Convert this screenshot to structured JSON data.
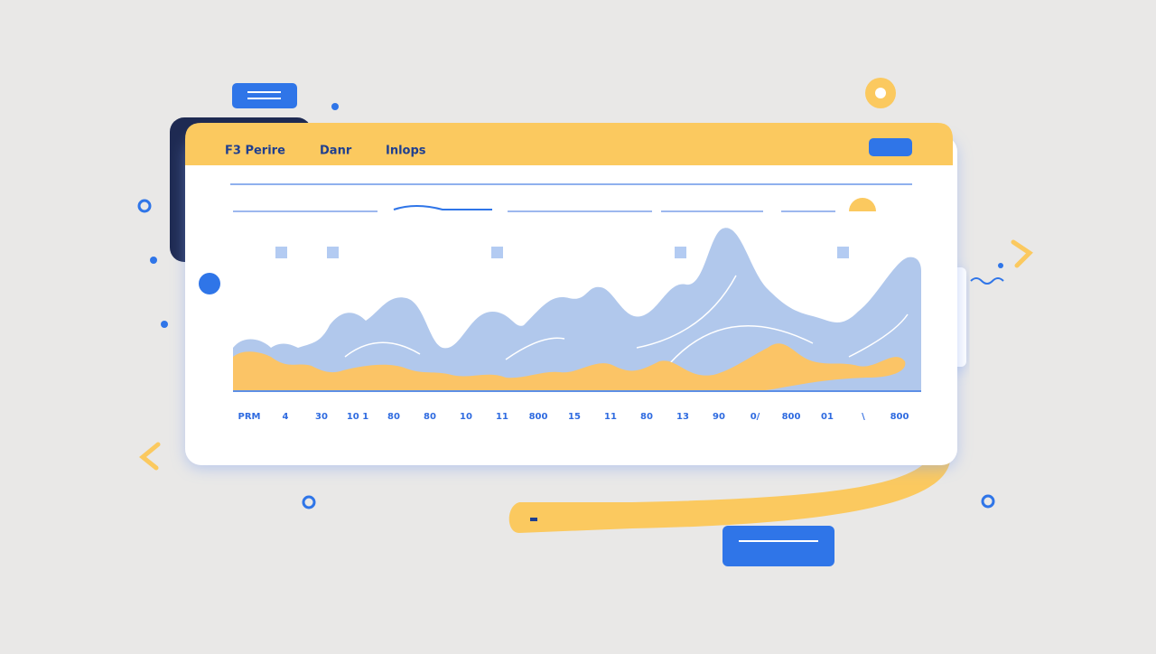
{
  "tabs": [
    "F3 Perire",
    "Danr",
    "Inlops"
  ],
  "x_labels": [
    "PRM",
    "4",
    "30",
    "10 1",
    "80",
    "80",
    "10",
    "11",
    "800",
    "15",
    "11",
    "80",
    "13",
    "90",
    "0/",
    "800",
    "01",
    "\\",
    "800"
  ]
}
